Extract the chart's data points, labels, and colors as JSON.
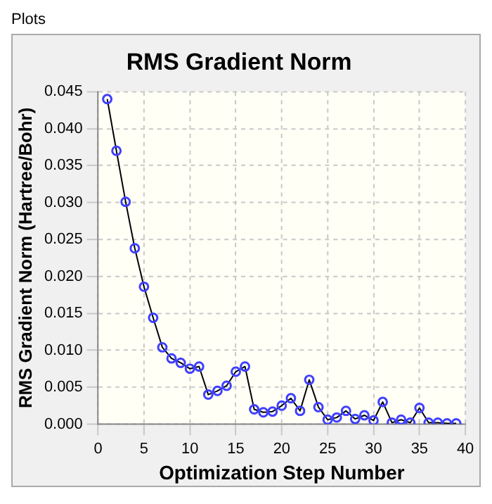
{
  "chart_data": {
    "type": "line",
    "title": "RMS Gradient Norm",
    "xlabel": "Optimization Step Number",
    "ylabel": "RMS Gradient Norm (Hartree/Bohr)",
    "annotations": [
      "Plots"
    ],
    "x": [
      1,
      2,
      3,
      4,
      5,
      6,
      7,
      8,
      9,
      10,
      11,
      12,
      13,
      14,
      15,
      16,
      17,
      18,
      19,
      20,
      21,
      22,
      23,
      24,
      25,
      26,
      27,
      28,
      29,
      30,
      31,
      32,
      33,
      34,
      35,
      36,
      37,
      38,
      39
    ],
    "series": [
      {
        "color": "#3f3fff",
        "values": [
          0.044,
          0.037,
          0.0301,
          0.0238,
          0.0186,
          0.0144,
          0.0104,
          0.0089,
          0.0083,
          0.0075,
          0.0078,
          0.004,
          0.0045,
          0.0052,
          0.0071,
          0.0078,
          0.002,
          0.0016,
          0.0017,
          0.0025,
          0.0035,
          0.0018,
          0.006,
          0.0023,
          0.0006,
          0.0009,
          0.0018,
          0.0007,
          0.0012,
          0.0005,
          0.003,
          0.0002,
          0.0006,
          0.0002,
          0.0022,
          0.0002,
          0.0002,
          0.0001,
          0.0001
        ]
      }
    ],
    "xlim": [
      0,
      40
    ],
    "xticks": [
      0,
      5,
      10,
      15,
      20,
      25,
      30,
      35,
      40
    ],
    "ylim": [
      0,
      0.045
    ],
    "yticks": [
      {
        "value": 0,
        "label": "0.000"
      },
      {
        "value": 0.005,
        "label": "0.005"
      },
      {
        "value": 0.01,
        "label": "0.010"
      },
      {
        "value": 0.015,
        "label": "0.015"
      },
      {
        "value": 0.02,
        "label": "0.020"
      },
      {
        "value": 0.025,
        "label": "0.025"
      },
      {
        "value": 0.03,
        "label": "0.030"
      },
      {
        "value": 0.035,
        "label": "0.035"
      },
      {
        "value": 0.04,
        "label": "0.040"
      },
      {
        "value": 0.045,
        "label": "0.045"
      }
    ],
    "grid": true,
    "marker": "circle",
    "line_style": "solid",
    "legend": false
  }
}
